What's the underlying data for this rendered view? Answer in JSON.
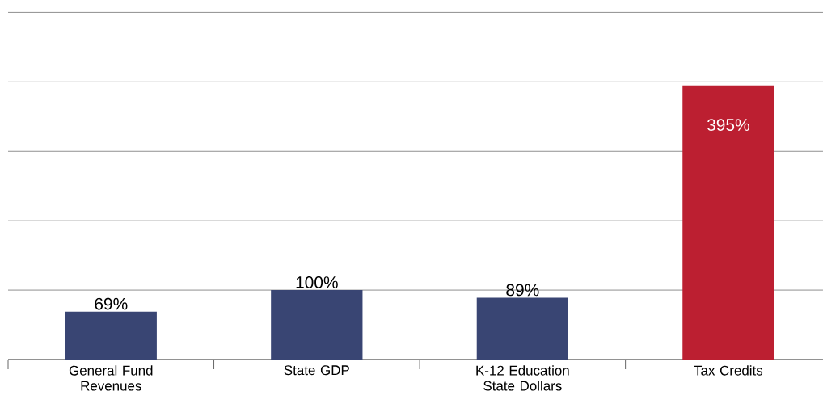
{
  "chart_data": {
    "type": "bar",
    "categories": [
      "General Fund Revenues",
      "State GDP",
      "K-12 Education State Dollars",
      "Tax Credits"
    ],
    "values": [
      69,
      100,
      89,
      395
    ],
    "colors": [
      "#394573",
      "#394573",
      "#394573",
      "#bc1f31"
    ],
    "value_labels": [
      "69%",
      "100%",
      "89%",
      "395%"
    ],
    "grid": "y",
    "tick_labels": "x"
  }
}
